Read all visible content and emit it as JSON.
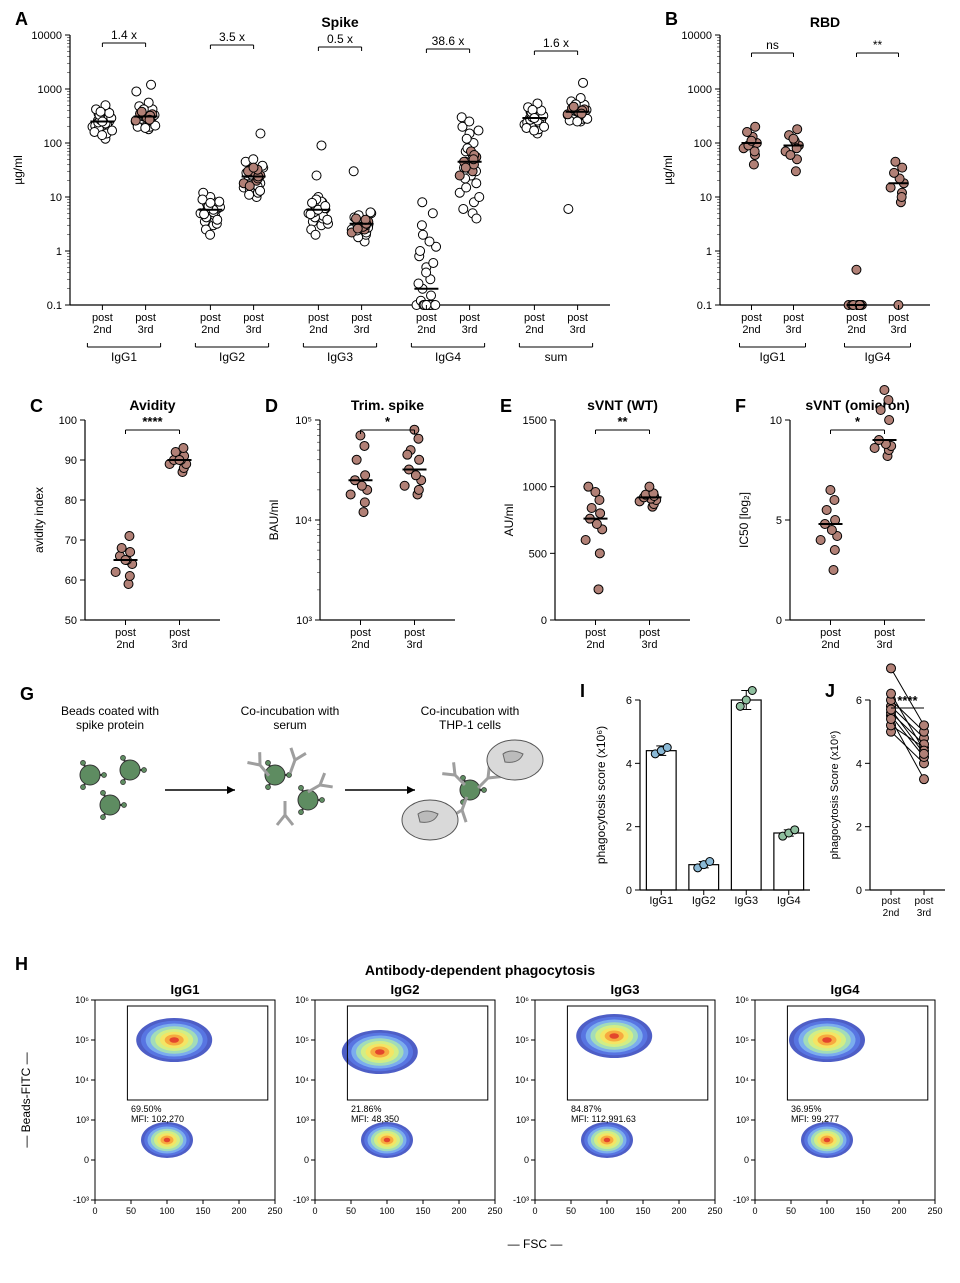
{
  "colors": {
    "marker_fill": "#b18076",
    "marker_open": "#ffffff",
    "marker_stroke": "#000000",
    "axis": "#000000",
    "bg": "#ffffff",
    "bar_igg1": "#8ab9d6",
    "bar_igg2": "#8ab9d6",
    "bar_igg3": "#8fbf9f",
    "bar_igg4": "#8fbf9f",
    "diagram_bead": "#5e8c61",
    "diagram_cell": "#d9d9d9",
    "diagram_ab": "#9e9e9e"
  },
  "A": {
    "label": "A",
    "title": "Spike",
    "ylabel": "µg/ml",
    "yticks": [
      0.1,
      1,
      10,
      100,
      1000,
      10000
    ],
    "ytick_labels": [
      "0.1",
      "1",
      "10",
      "100",
      "1000",
      "10000"
    ],
    "groups": [
      "IgG1",
      "IgG2",
      "IgG3",
      "IgG4",
      "sum"
    ],
    "subs": [
      "post\n2nd",
      "post\n3rd"
    ],
    "fold": [
      "1.4 x",
      "3.5 x",
      "0.5 x",
      "38.6 x",
      "1.6 x"
    ],
    "data": {
      "IgG1": {
        "post2": {
          "open": [
            120,
            150,
            200,
            250,
            300,
            180,
            220,
            350,
            400,
            280,
            210,
            170,
            190,
            260,
            310,
            240,
            230,
            270,
            330,
            290,
            160,
            140,
            360,
            420,
            500,
            380,
            250
          ],
          "fill": []
        },
        "post3": {
          "open": [
            180,
            200,
            250,
            300,
            350,
            220,
            260,
            400,
            450,
            320,
            240,
            210,
            230,
            300,
            360,
            280,
            270,
            310,
            380,
            330,
            200,
            190,
            420,
            480,
            560,
            420,
            300,
            1200,
            900
          ],
          "fill": [
            280,
            310,
            260,
            340,
            290,
            350,
            320,
            380,
            270
          ]
        }
      },
      "IgG2": {
        "post2": {
          "open": [
            3,
            4,
            5,
            6,
            7,
            3.5,
            4.5,
            5.5,
            8,
            10,
            12,
            6.5,
            7.5,
            2.5,
            3.2,
            4.2,
            5.2,
            6.2,
            7.2,
            8.2,
            9,
            2,
            3.8,
            4.8,
            5.8,
            6.8,
            7.8
          ],
          "fill": []
        },
        "post3": {
          "open": [
            10,
            12,
            15,
            18,
            20,
            25,
            30,
            14,
            16,
            22,
            28,
            35,
            40,
            11,
            13,
            17,
            21,
            26,
            32,
            38,
            45,
            50,
            150
          ],
          "fill": [
            20,
            22,
            18,
            25,
            28,
            30,
            24,
            16,
            32,
            35
          ]
        }
      },
      "IgG3": {
        "post2": {
          "open": [
            3,
            4,
            5,
            6,
            7,
            3.5,
            4.5,
            5.5,
            8,
            10,
            2.5,
            3.2,
            4.2,
            5.2,
            6.2,
            7.2,
            8.2,
            9,
            2,
            3.8,
            4.8,
            5.8,
            6.8,
            7.8,
            90,
            25
          ],
          "fill": []
        },
        "post3": {
          "open": [
            1.5,
            2,
            2.5,
            3,
            3.5,
            4,
            2.2,
            2.8,
            3.2,
            3.8,
            4.2,
            5,
            1.8,
            2.4,
            2.7,
            3.1,
            3.6,
            4.1,
            4.6,
            5.2,
            30
          ],
          "fill": [
            2.5,
            3,
            2.2,
            3.5,
            2.8,
            4,
            3.2,
            2.6,
            3.8
          ]
        }
      },
      "IgG4": {
        "post2": {
          "open": [
            0.1,
            0.1,
            0.1,
            0.1,
            0.1,
            0.12,
            0.15,
            0.2,
            0.3,
            0.5,
            0.8,
            1.2,
            2,
            3,
            5,
            8,
            0.1,
            0.1,
            0.1,
            0.1,
            0.25,
            0.4,
            0.6,
            1,
            1.5,
            0.1,
            0.1
          ],
          "fill": []
        },
        "post3": {
          "open": [
            5,
            8,
            12,
            18,
            25,
            35,
            50,
            70,
            100,
            150,
            200,
            10,
            15,
            22,
            30,
            45,
            60,
            80,
            120,
            170,
            300,
            250,
            4,
            6
          ],
          "fill": [
            30,
            40,
            25,
            55,
            70,
            45,
            60,
            35,
            50
          ]
        }
      },
      "sum": {
        "post2": {
          "open": [
            150,
            180,
            220,
            260,
            300,
            200,
            240,
            380,
            430,
            310,
            240,
            200,
            220,
            290,
            340,
            270,
            260,
            300,
            370,
            320,
            190,
            170,
            400,
            460,
            540,
            410,
            290
          ],
          "fill": []
        },
        "post3": {
          "open": [
            250,
            280,
            330,
            380,
            430,
            290,
            330,
            480,
            540,
            400,
            320,
            280,
            300,
            370,
            440,
            350,
            340,
            390,
            470,
            410,
            260,
            250,
            510,
            590,
            680,
            520,
            380,
            1300,
            6
          ],
          "fill": [
            360,
            390,
            340,
            420,
            370,
            440,
            400,
            470,
            350
          ]
        }
      }
    }
  },
  "B": {
    "label": "B",
    "title": "RBD",
    "ylabel": "µg/ml",
    "yticks": [
      0.1,
      1,
      10,
      100,
      1000,
      10000
    ],
    "ytick_labels": [
      "0.1",
      "1",
      "10",
      "100",
      "1000",
      "10000"
    ],
    "groups": [
      "IgG1",
      "IgG4"
    ],
    "subs": [
      "post\n2nd",
      "post\n3rd"
    ],
    "sig": [
      "ns",
      "**"
    ],
    "data": {
      "IgG1": {
        "post2": [
          40,
          60,
          80,
          100,
          130,
          160,
          200,
          90,
          70,
          110
        ],
        "post3": [
          30,
          50,
          70,
          90,
          110,
          140,
          180,
          60,
          80,
          120
        ]
      },
      "IgG4": {
        "post2": [
          0.1,
          0.1,
          0.1,
          0.1,
          0.1,
          0.1,
          0.1,
          0.1,
          0.1,
          0.45
        ],
        "post3": [
          8,
          12,
          15,
          18,
          22,
          28,
          35,
          45,
          10,
          0.1
        ]
      }
    }
  },
  "C": {
    "label": "C",
    "title": "Avidity",
    "ylabel": "avidity index",
    "yticks": [
      50,
      60,
      70,
      80,
      90,
      100
    ],
    "sig": "****",
    "subs": [
      "post\n2nd",
      "post\n3rd"
    ],
    "data": {
      "post2": [
        59,
        61,
        62,
        64,
        65,
        66,
        67,
        68,
        71,
        65
      ],
      "post3": [
        87,
        88,
        89,
        89,
        90,
        90,
        91,
        92,
        93,
        90
      ]
    }
  },
  "D": {
    "label": "D",
    "title": "Trim. spike",
    "ylabel": "BAU/ml",
    "yticks": [
      1000,
      10000,
      100000
    ],
    "ytick_labels": [
      "10³",
      "10⁴",
      "10⁵"
    ],
    "sig": "*",
    "subs": [
      "post\n2nd",
      "post\n3rd"
    ],
    "data": {
      "post2": [
        12000,
        15000,
        18000,
        20000,
        22000,
        25000,
        28000,
        40000,
        55000,
        70000
      ],
      "post3": [
        18000,
        20000,
        22000,
        25000,
        28000,
        32000,
        40000,
        50000,
        65000,
        80000,
        45000
      ]
    }
  },
  "E": {
    "label": "E",
    "title": "sVNT (WT)",
    "ylabel": "AU/ml",
    "yticks": [
      0,
      500,
      1000,
      1500
    ],
    "sig": "**",
    "subs": [
      "post\n2nd",
      "post\n3rd"
    ],
    "data": {
      "post2": [
        230,
        500,
        600,
        680,
        720,
        760,
        800,
        840,
        900,
        960,
        1000
      ],
      "post3": [
        850,
        870,
        890,
        900,
        910,
        920,
        930,
        940,
        950,
        1000
      ]
    }
  },
  "F": {
    "label": "F",
    "title": "sVNT (omicron)",
    "ylabel": "IC50 [log₂]",
    "yticks": [
      0,
      5,
      10
    ],
    "sig": "*",
    "subs": [
      "post\n2nd",
      "post\n3rd"
    ],
    "data": {
      "post2": [
        2.5,
        3.5,
        4,
        4.2,
        4.5,
        4.8,
        5,
        5.5,
        6,
        6.5
      ],
      "post3": [
        8.2,
        8.5,
        8.6,
        8.7,
        8.8,
        9,
        10,
        10.5,
        11,
        11.5
      ]
    }
  },
  "G": {
    "label": "G",
    "steps": [
      "Beads coated with\nspike protein",
      "Co-incubation with\nserum",
      "Co-incubation with\nTHP-1 cells"
    ]
  },
  "I": {
    "label": "I",
    "ylabel": "phagocytosis score (x10⁶)",
    "yticks": [
      0,
      2,
      4,
      6
    ],
    "labels": [
      "IgG1",
      "IgG2",
      "IgG3",
      "IgG4"
    ],
    "bars": [
      4.4,
      0.8,
      6.0,
      1.8
    ],
    "err": [
      0.15,
      0.1,
      0.3,
      0.1
    ],
    "points": {
      "IgG1": [
        4.3,
        4.4,
        4.5
      ],
      "IgG2": [
        0.7,
        0.8,
        0.9
      ],
      "IgG3": [
        5.8,
        6.0,
        6.3
      ],
      "IgG4": [
        1.7,
        1.8,
        1.9
      ]
    }
  },
  "J": {
    "label": "J",
    "ylabel": "phagocytosis Score (x10⁶)",
    "yticks": [
      0,
      2,
      4,
      6
    ],
    "sig": "****",
    "subs": [
      "post\n2nd",
      "post\n3rd"
    ],
    "pairs": [
      [
        5.0,
        4.0
      ],
      [
        5.2,
        4.5
      ],
      [
        5.5,
        4.2
      ],
      [
        5.8,
        4.8
      ],
      [
        5.6,
        4.6
      ],
      [
        6.0,
        5.0
      ],
      [
        6.2,
        4.4
      ],
      [
        7.0,
        5.2
      ],
      [
        5.4,
        3.5
      ],
      [
        5.7,
        4.3
      ]
    ]
  },
  "H": {
    "label": "H",
    "title": "Antibody-dependent phagocytosis",
    "ylabel": "Beads-FITC",
    "xlabel": "FSC",
    "xticks": [
      0,
      50,
      100,
      150,
      200,
      250
    ],
    "yticks_exp": [
      -3,
      0,
      3,
      4,
      5,
      6
    ],
    "ytick_labels": [
      "-10³",
      "0",
      "10³",
      "10⁴",
      "10⁵",
      "10⁶"
    ],
    "panels": [
      {
        "name": "IgG1",
        "pct": "69.50%",
        "mfi": "MFI: 102,270",
        "top_center": [
          110,
          5.0
        ],
        "bottom_center": [
          100,
          1.5
        ]
      },
      {
        "name": "IgG2",
        "pct": "21.86%",
        "mfi": "MFI: 48,350",
        "top_center": [
          90,
          4.7
        ],
        "bottom_center": [
          100,
          1.5
        ]
      },
      {
        "name": "IgG3",
        "pct": "84.87%",
        "mfi": "MFI: 112,991.63",
        "top_center": [
          110,
          5.1
        ],
        "bottom_center": [
          100,
          1.5
        ]
      },
      {
        "name": "IgG4",
        "pct": "36.95%",
        "mfi": "MFI: 99,277",
        "top_center": [
          100,
          5.0
        ],
        "bottom_center": [
          100,
          1.5
        ]
      }
    ]
  }
}
